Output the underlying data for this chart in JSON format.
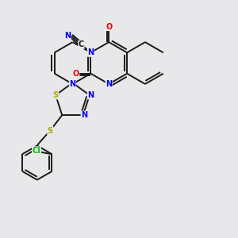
{
  "bg_color": "#e8e8eb",
  "bond_color": "#1a1a1a",
  "bond_width": 1.4,
  "atom_colors": {
    "N": "#0000ee",
    "O": "#ee0000",
    "S": "#aaaa00",
    "Cl": "#00bb00",
    "C": "#1a1a1a"
  },
  "figsize": [
    3.0,
    3.0
  ],
  "dpi": 100
}
